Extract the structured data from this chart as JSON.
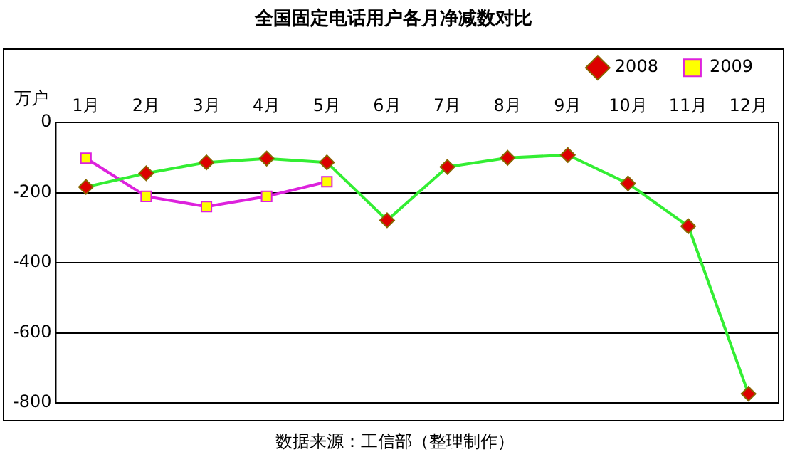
{
  "chart_data": {
    "type": "line",
    "title": "全国固定电话用户各月净减数对比",
    "ylabel": "万户",
    "annotations": [
      "数据来源：工信部（整理制作）"
    ],
    "categories": [
      "1月",
      "2月",
      "3月",
      "4月",
      "5月",
      "6月",
      "7月",
      "8月",
      "9月",
      "10月",
      "11月",
      "12月"
    ],
    "series": [
      {
        "name": "2008",
        "color": "#33ee33",
        "marker": "diamond",
        "values": [
          -184,
          -145,
          -114,
          -103,
          -114,
          -279,
          -127,
          -101,
          -93,
          -174,
          -296,
          -774
        ]
      },
      {
        "name": "2009",
        "color": "#dd22dd",
        "marker": "square",
        "values": [
          -102,
          -211,
          -240,
          -211,
          -169,
          null,
          null,
          null,
          null,
          null,
          null,
          null
        ]
      }
    ],
    "ylim": [
      -800,
      0
    ],
    "yticks": [
      -800,
      -600,
      -400,
      -200,
      0
    ],
    "grid": "y",
    "legend": "top"
  }
}
